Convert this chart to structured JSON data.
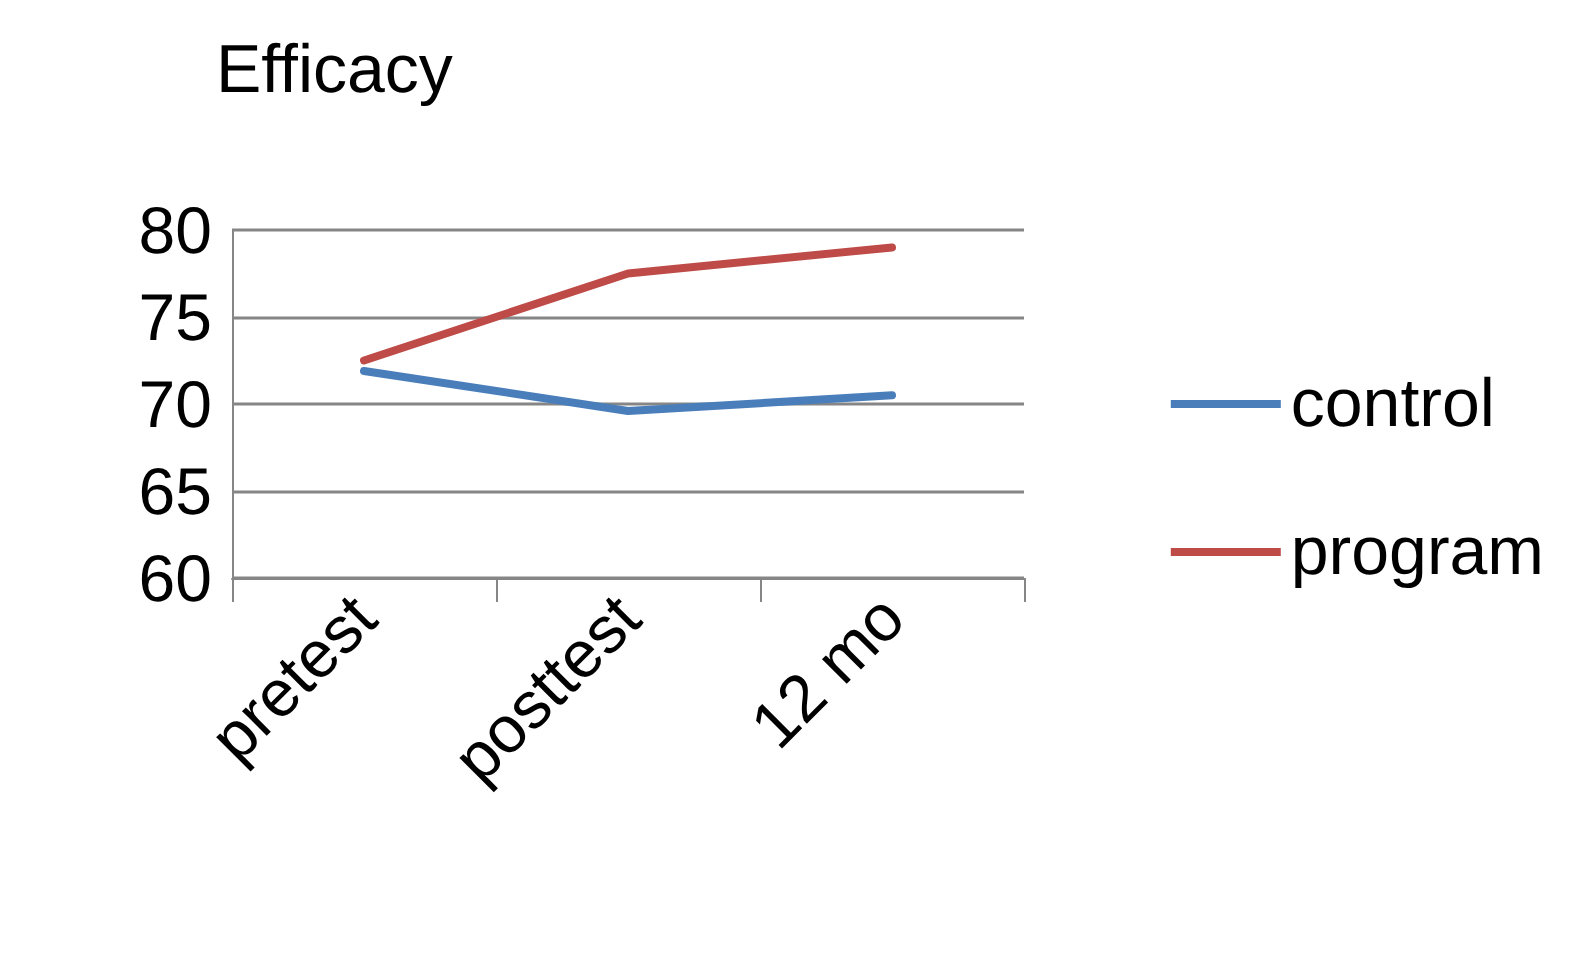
{
  "chart_data": {
    "type": "line",
    "title": "Efficacy",
    "categories": [
      "pretest",
      "posttest",
      "12 mo"
    ],
    "series": [
      {
        "name": "control",
        "color": "#4a7ebb",
        "values": [
          71.9,
          69.6,
          70.5
        ]
      },
      {
        "name": "program",
        "color": "#be4b48",
        "values": [
          72.5,
          77.5,
          79
        ]
      }
    ],
    "ylim": [
      60,
      80
    ],
    "yticks": [
      60,
      65,
      70,
      75,
      80
    ],
    "grid": "y",
    "legend": "right",
    "marker": "none",
    "line_style": "solid"
  }
}
